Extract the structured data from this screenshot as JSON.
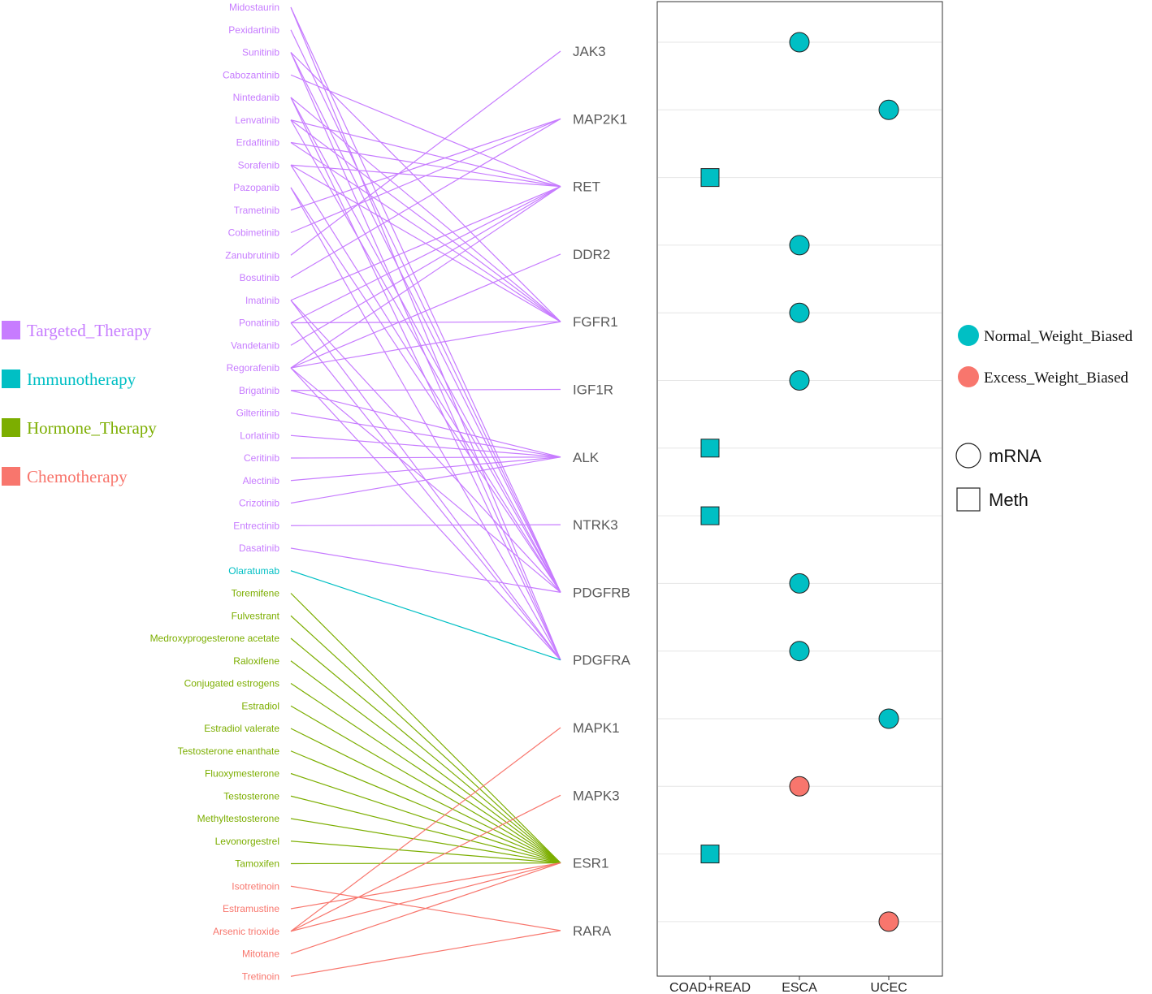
{
  "colors": {
    "Targeted_Therapy": "#c77cff",
    "Immunotherapy": "#00bfc4",
    "Hormone_Therapy": "#7cae00",
    "Chemotherapy": "#f8766d",
    "Normal_Weight_Biased": "#00bfc4",
    "Excess_Weight_Biased": "#f8766d",
    "gene_label": "#5a5a5a",
    "grid": "#e6e6e6"
  },
  "therapy_legend": [
    {
      "label": "Targeted_Therapy",
      "color": "#c77cff"
    },
    {
      "label": "Immunotherapy",
      "color": "#00bfc4"
    },
    {
      "label": "Hormone_Therapy",
      "color": "#7cae00"
    },
    {
      "label": "Chemotherapy",
      "color": "#f8766d"
    }
  ],
  "bias_legend": [
    {
      "label": "Normal_Weight_Biased",
      "color": "#00bfc4"
    },
    {
      "label": "Excess_Weight_Biased",
      "color": "#f8766d"
    }
  ],
  "shape_legend": [
    {
      "label": "mRNA",
      "shape": "circle"
    },
    {
      "label": "Meth",
      "shape": "square"
    }
  ],
  "chart_data": {
    "type": "scatter",
    "drugs": [
      {
        "name": "Midostaurin",
        "therapy": "Targeted_Therapy"
      },
      {
        "name": "Pexidartinib",
        "therapy": "Targeted_Therapy"
      },
      {
        "name": "Sunitinib",
        "therapy": "Targeted_Therapy"
      },
      {
        "name": "Cabozantinib",
        "therapy": "Targeted_Therapy"
      },
      {
        "name": "Nintedanib",
        "therapy": "Targeted_Therapy"
      },
      {
        "name": "Lenvatinib",
        "therapy": "Targeted_Therapy"
      },
      {
        "name": "Erdafitinib",
        "therapy": "Targeted_Therapy"
      },
      {
        "name": "Sorafenib",
        "therapy": "Targeted_Therapy"
      },
      {
        "name": "Pazopanib",
        "therapy": "Targeted_Therapy"
      },
      {
        "name": "Trametinib",
        "therapy": "Targeted_Therapy"
      },
      {
        "name": "Cobimetinib",
        "therapy": "Targeted_Therapy"
      },
      {
        "name": "Zanubrutinib",
        "therapy": "Targeted_Therapy"
      },
      {
        "name": "Bosutinib",
        "therapy": "Targeted_Therapy"
      },
      {
        "name": "Imatinib",
        "therapy": "Targeted_Therapy"
      },
      {
        "name": "Ponatinib",
        "therapy": "Targeted_Therapy"
      },
      {
        "name": "Vandetanib",
        "therapy": "Targeted_Therapy"
      },
      {
        "name": "Regorafenib",
        "therapy": "Targeted_Therapy"
      },
      {
        "name": "Brigatinib",
        "therapy": "Targeted_Therapy"
      },
      {
        "name": "Gilteritinib",
        "therapy": "Targeted_Therapy"
      },
      {
        "name": "Lorlatinib",
        "therapy": "Targeted_Therapy"
      },
      {
        "name": "Ceritinib",
        "therapy": "Targeted_Therapy"
      },
      {
        "name": "Alectinib",
        "therapy": "Targeted_Therapy"
      },
      {
        "name": "Crizotinib",
        "therapy": "Targeted_Therapy"
      },
      {
        "name": "Entrectinib",
        "therapy": "Targeted_Therapy"
      },
      {
        "name": "Dasatinib",
        "therapy": "Targeted_Therapy"
      },
      {
        "name": "Olaratumab",
        "therapy": "Immunotherapy"
      },
      {
        "name": "Toremifene",
        "therapy": "Hormone_Therapy"
      },
      {
        "name": "Fulvestrant",
        "therapy": "Hormone_Therapy"
      },
      {
        "name": "Medroxyprogesterone acetate",
        "therapy": "Hormone_Therapy"
      },
      {
        "name": "Raloxifene",
        "therapy": "Hormone_Therapy"
      },
      {
        "name": "Conjugated estrogens",
        "therapy": "Hormone_Therapy"
      },
      {
        "name": "Estradiol",
        "therapy": "Hormone_Therapy"
      },
      {
        "name": "Estradiol valerate",
        "therapy": "Hormone_Therapy"
      },
      {
        "name": "Testosterone enanthate",
        "therapy": "Hormone_Therapy"
      },
      {
        "name": "Fluoxymesterone",
        "therapy": "Hormone_Therapy"
      },
      {
        "name": "Testosterone",
        "therapy": "Hormone_Therapy"
      },
      {
        "name": "Methyltestosterone",
        "therapy": "Hormone_Therapy"
      },
      {
        "name": "Levonorgestrel",
        "therapy": "Hormone_Therapy"
      },
      {
        "name": "Tamoxifen",
        "therapy": "Hormone_Therapy"
      },
      {
        "name": "Isotretinoin",
        "therapy": "Chemotherapy"
      },
      {
        "name": "Estramustine",
        "therapy": "Chemotherapy"
      },
      {
        "name": "Arsenic trioxide",
        "therapy": "Chemotherapy"
      },
      {
        "name": "Mitotane",
        "therapy": "Chemotherapy"
      },
      {
        "name": "Tretinoin",
        "therapy": "Chemotherapy"
      }
    ],
    "genes": [
      "JAK3",
      "MAP2K1",
      "RET",
      "DDR2",
      "FGFR1",
      "IGF1R",
      "ALK",
      "NTRK3",
      "PDGFRB",
      "PDGFRA",
      "MAPK1",
      "MAPK3",
      "ESR1",
      "RARA"
    ],
    "links": [
      {
        "drug": "Midostaurin",
        "gene": "PDGFRB",
        "therapy": "Targeted_Therapy"
      },
      {
        "drug": "Midostaurin",
        "gene": "PDGFRA",
        "therapy": "Targeted_Therapy"
      },
      {
        "drug": "Pexidartinib",
        "gene": "PDGFRB",
        "therapy": "Targeted_Therapy"
      },
      {
        "drug": "Sunitinib",
        "gene": "PDGFRB",
        "therapy": "Targeted_Therapy"
      },
      {
        "drug": "Sunitinib",
        "gene": "PDGFRA",
        "therapy": "Targeted_Therapy"
      },
      {
        "drug": "Sunitinib",
        "gene": "FGFR1",
        "therapy": "Targeted_Therapy"
      },
      {
        "drug": "Cabozantinib",
        "gene": "RET",
        "therapy": "Targeted_Therapy"
      },
      {
        "drug": "Nintedanib",
        "gene": "FGFR1",
        "therapy": "Targeted_Therapy"
      },
      {
        "drug": "Nintedanib",
        "gene": "PDGFRB",
        "therapy": "Targeted_Therapy"
      },
      {
        "drug": "Nintedanib",
        "gene": "PDGFRA",
        "therapy": "Targeted_Therapy"
      },
      {
        "drug": "Lenvatinib",
        "gene": "RET",
        "therapy": "Targeted_Therapy"
      },
      {
        "drug": "Lenvatinib",
        "gene": "FGFR1",
        "therapy": "Targeted_Therapy"
      },
      {
        "drug": "Lenvatinib",
        "gene": "PDGFRB",
        "therapy": "Targeted_Therapy"
      },
      {
        "drug": "Erdafitinib",
        "gene": "FGFR1",
        "therapy": "Targeted_Therapy"
      },
      {
        "drug": "Erdafitinib",
        "gene": "RET",
        "therapy": "Targeted_Therapy"
      },
      {
        "drug": "Sorafenib",
        "gene": "RET",
        "therapy": "Targeted_Therapy"
      },
      {
        "drug": "Sorafenib",
        "gene": "PDGFRB",
        "therapy": "Targeted_Therapy"
      },
      {
        "drug": "Sorafenib",
        "gene": "FGFR1",
        "therapy": "Targeted_Therapy"
      },
      {
        "drug": "Pazopanib",
        "gene": "PDGFRA",
        "therapy": "Targeted_Therapy"
      },
      {
        "drug": "Pazopanib",
        "gene": "PDGFRB",
        "therapy": "Targeted_Therapy"
      },
      {
        "drug": "Trametinib",
        "gene": "MAP2K1",
        "therapy": "Targeted_Therapy"
      },
      {
        "drug": "Cobimetinib",
        "gene": "MAP2K1",
        "therapy": "Targeted_Therapy"
      },
      {
        "drug": "Zanubrutinib",
        "gene": "JAK3",
        "therapy": "Targeted_Therapy"
      },
      {
        "drug": "Bosutinib",
        "gene": "MAP2K1",
        "therapy": "Targeted_Therapy"
      },
      {
        "drug": "Imatinib",
        "gene": "RET",
        "therapy": "Targeted_Therapy"
      },
      {
        "drug": "Imatinib",
        "gene": "PDGFRB",
        "therapy": "Targeted_Therapy"
      },
      {
        "drug": "Imatinib",
        "gene": "PDGFRA",
        "therapy": "Targeted_Therapy"
      },
      {
        "drug": "Ponatinib",
        "gene": "RET",
        "therapy": "Targeted_Therapy"
      },
      {
        "drug": "Ponatinib",
        "gene": "FGFR1",
        "therapy": "Targeted_Therapy"
      },
      {
        "drug": "Ponatinib",
        "gene": "PDGFRA",
        "therapy": "Targeted_Therapy"
      },
      {
        "drug": "Vandetanib",
        "gene": "RET",
        "therapy": "Targeted_Therapy"
      },
      {
        "drug": "Regorafenib",
        "gene": "RET",
        "therapy": "Targeted_Therapy"
      },
      {
        "drug": "Regorafenib",
        "gene": "DDR2",
        "therapy": "Targeted_Therapy"
      },
      {
        "drug": "Regorafenib",
        "gene": "FGFR1",
        "therapy": "Targeted_Therapy"
      },
      {
        "drug": "Regorafenib",
        "gene": "PDGFRB",
        "therapy": "Targeted_Therapy"
      },
      {
        "drug": "Regorafenib",
        "gene": "PDGFRA",
        "therapy": "Targeted_Therapy"
      },
      {
        "drug": "Brigatinib",
        "gene": "IGF1R",
        "therapy": "Targeted_Therapy"
      },
      {
        "drug": "Brigatinib",
        "gene": "ALK",
        "therapy": "Targeted_Therapy"
      },
      {
        "drug": "Gilteritinib",
        "gene": "ALK",
        "therapy": "Targeted_Therapy"
      },
      {
        "drug": "Lorlatinib",
        "gene": "ALK",
        "therapy": "Targeted_Therapy"
      },
      {
        "drug": "Ceritinib",
        "gene": "ALK",
        "therapy": "Targeted_Therapy"
      },
      {
        "drug": "Alectinib",
        "gene": "ALK",
        "therapy": "Targeted_Therapy"
      },
      {
        "drug": "Crizotinib",
        "gene": "ALK",
        "therapy": "Targeted_Therapy"
      },
      {
        "drug": "Entrectinib",
        "gene": "NTRK3",
        "therapy": "Targeted_Therapy"
      },
      {
        "drug": "Dasatinib",
        "gene": "PDGFRB",
        "therapy": "Targeted_Therapy"
      },
      {
        "drug": "Olaratumab",
        "gene": "PDGFRA",
        "therapy": "Immunotherapy"
      },
      {
        "drug": "Toremifene",
        "gene": "ESR1",
        "therapy": "Hormone_Therapy"
      },
      {
        "drug": "Fulvestrant",
        "gene": "ESR1",
        "therapy": "Hormone_Therapy"
      },
      {
        "drug": "Medroxyprogesterone acetate",
        "gene": "ESR1",
        "therapy": "Hormone_Therapy"
      },
      {
        "drug": "Raloxifene",
        "gene": "ESR1",
        "therapy": "Hormone_Therapy"
      },
      {
        "drug": "Conjugated estrogens",
        "gene": "ESR1",
        "therapy": "Hormone_Therapy"
      },
      {
        "drug": "Estradiol",
        "gene": "ESR1",
        "therapy": "Hormone_Therapy"
      },
      {
        "drug": "Estradiol valerate",
        "gene": "ESR1",
        "therapy": "Hormone_Therapy"
      },
      {
        "drug": "Testosterone enanthate",
        "gene": "ESR1",
        "therapy": "Hormone_Therapy"
      },
      {
        "drug": "Fluoxymesterone",
        "gene": "ESR1",
        "therapy": "Hormone_Therapy"
      },
      {
        "drug": "Testosterone",
        "gene": "ESR1",
        "therapy": "Hormone_Therapy"
      },
      {
        "drug": "Methyltestosterone",
        "gene": "ESR1",
        "therapy": "Hormone_Therapy"
      },
      {
        "drug": "Levonorgestrel",
        "gene": "ESR1",
        "therapy": "Hormone_Therapy"
      },
      {
        "drug": "Tamoxifen",
        "gene": "ESR1",
        "therapy": "Hormone_Therapy"
      },
      {
        "drug": "Isotretinoin",
        "gene": "RARA",
        "therapy": "Chemotherapy"
      },
      {
        "drug": "Estramustine",
        "gene": "ESR1",
        "therapy": "Chemotherapy"
      },
      {
        "drug": "Arsenic trioxide",
        "gene": "MAPK1",
        "therapy": "Chemotherapy"
      },
      {
        "drug": "Arsenic trioxide",
        "gene": "MAPK3",
        "therapy": "Chemotherapy"
      },
      {
        "drug": "Arsenic trioxide",
        "gene": "ESR1",
        "therapy": "Chemotherapy"
      },
      {
        "drug": "Mitotane",
        "gene": "ESR1",
        "therapy": "Chemotherapy"
      },
      {
        "drug": "Tretinoin",
        "gene": "RARA",
        "therapy": "Chemotherapy"
      }
    ],
    "cancers": [
      "COAD+READ",
      "ESCA",
      "UCEC"
    ],
    "points": [
      {
        "gene": "JAK3",
        "cancer": "ESCA",
        "type": "mRNA",
        "bias": "Normal_Weight_Biased"
      },
      {
        "gene": "MAP2K1",
        "cancer": "UCEC",
        "type": "mRNA",
        "bias": "Normal_Weight_Biased"
      },
      {
        "gene": "RET",
        "cancer": "COAD+READ",
        "type": "Meth",
        "bias": "Normal_Weight_Biased"
      },
      {
        "gene": "DDR2",
        "cancer": "ESCA",
        "type": "mRNA",
        "bias": "Normal_Weight_Biased"
      },
      {
        "gene": "FGFR1",
        "cancer": "ESCA",
        "type": "mRNA",
        "bias": "Normal_Weight_Biased"
      },
      {
        "gene": "IGF1R",
        "cancer": "ESCA",
        "type": "mRNA",
        "bias": "Normal_Weight_Biased"
      },
      {
        "gene": "ALK",
        "cancer": "COAD+READ",
        "type": "Meth",
        "bias": "Normal_Weight_Biased"
      },
      {
        "gene": "NTRK3",
        "cancer": "COAD+READ",
        "type": "Meth",
        "bias": "Normal_Weight_Biased"
      },
      {
        "gene": "PDGFRB",
        "cancer": "ESCA",
        "type": "mRNA",
        "bias": "Normal_Weight_Biased"
      },
      {
        "gene": "PDGFRA",
        "cancer": "ESCA",
        "type": "mRNA",
        "bias": "Normal_Weight_Biased"
      },
      {
        "gene": "MAPK1",
        "cancer": "UCEC",
        "type": "mRNA",
        "bias": "Normal_Weight_Biased"
      },
      {
        "gene": "MAPK3",
        "cancer": "ESCA",
        "type": "mRNA",
        "bias": "Excess_Weight_Biased"
      },
      {
        "gene": "ESR1",
        "cancer": "COAD+READ",
        "type": "Meth",
        "bias": "Normal_Weight_Biased"
      },
      {
        "gene": "RARA",
        "cancer": "UCEC",
        "type": "mRNA",
        "bias": "Excess_Weight_Biased"
      }
    ]
  }
}
